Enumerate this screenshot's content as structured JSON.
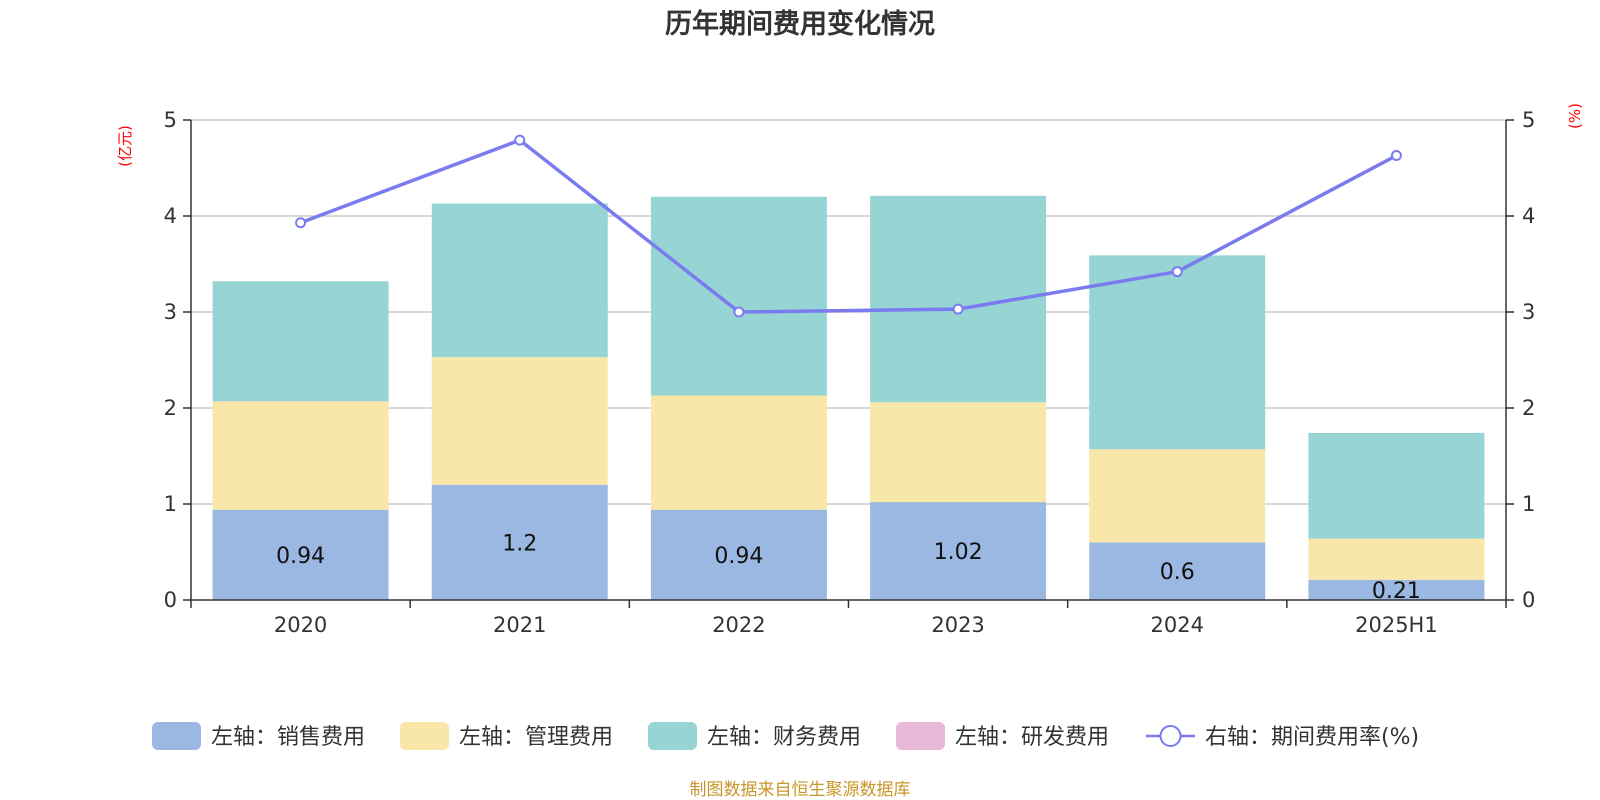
{
  "chart_data": {
    "type": "bar",
    "title": "历年期间费用变化情况",
    "categories": [
      "2020",
      "2021",
      "2022",
      "2023",
      "2024",
      "2025H1"
    ],
    "y_left": {
      "unit": "(亿元)",
      "ylim": [
        0,
        5
      ],
      "ticks": [
        "0",
        "1",
        "2",
        "3",
        "4",
        "5"
      ]
    },
    "y_right": {
      "unit": "(%)",
      "ylim": [
        0,
        5
      ],
      "ticks": [
        "0",
        "1",
        "2",
        "3",
        "4",
        "5"
      ]
    },
    "grid": true,
    "legend_position": "bottom",
    "stacked": true,
    "series": [
      {
        "name": "左轴：销售费用",
        "axis": "left",
        "kind": "bar",
        "color": "#9bb8e2",
        "values": [
          0.94,
          1.2,
          0.94,
          1.02,
          0.6,
          0.21
        ],
        "labels": [
          "0.94",
          "1.2",
          "0.94",
          "1.02",
          "0.6",
          "0.21"
        ]
      },
      {
        "name": "左轴：管理费用",
        "axis": "left",
        "kind": "bar",
        "color": "#f8e7a8",
        "values": [
          1.13,
          1.33,
          1.19,
          1.04,
          0.97,
          0.43
        ]
      },
      {
        "name": "左轴：财务费用",
        "axis": "left",
        "kind": "bar",
        "color": "#97d4d4",
        "values": [
          1.25,
          1.6,
          2.07,
          2.15,
          2.02,
          1.1
        ]
      },
      {
        "name": "左轴：研发费用",
        "axis": "left",
        "kind": "bar",
        "color": "#e8b8d8",
        "values": [
          0,
          0,
          0,
          0,
          0,
          0
        ]
      },
      {
        "name": "右轴：期间费用率(%)",
        "axis": "right",
        "kind": "line",
        "color": "#7b7bf0",
        "values": [
          3.93,
          4.79,
          3.0,
          3.03,
          3.42,
          4.63
        ]
      }
    ]
  },
  "source_note": "制图数据来自恒生聚源数据库"
}
